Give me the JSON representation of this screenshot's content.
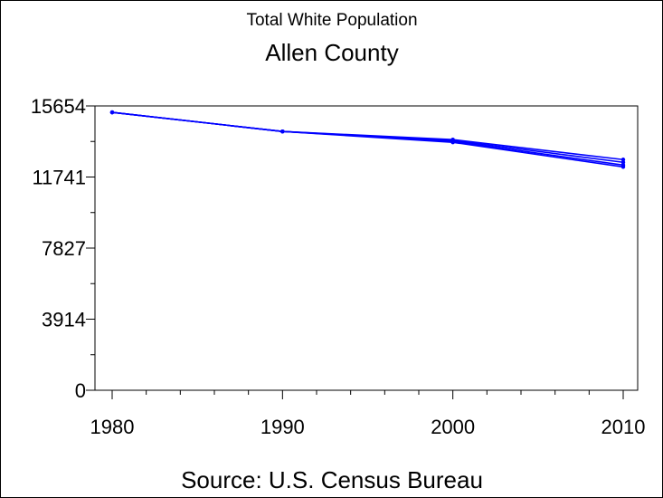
{
  "chart_data": {
    "type": "line",
    "title": "Total White Population",
    "subtitle": "Allen County",
    "xlabel": "",
    "ylabel": "",
    "footnote": "Source: U.S. Census Bureau",
    "x": [
      1980,
      1990,
      2000,
      2010
    ],
    "x_ticks": [
      "1980",
      "1990",
      "2000",
      "2010"
    ],
    "y_ticks": [
      "0",
      "3914",
      "7827",
      "11741",
      "15654"
    ],
    "xlim": [
      1980,
      2010
    ],
    "ylim": [
      0,
      15654
    ],
    "grid": false,
    "series": [
      {
        "values": [
          15300,
          14250,
          13800,
          12700
        ],
        "color": "#0000ff"
      },
      {
        "values": [
          15300,
          14250,
          13750,
          12550
        ],
        "color": "#0000ff"
      },
      {
        "values": [
          15300,
          14250,
          13700,
          12400
        ],
        "color": "#0000ff"
      },
      {
        "values": [
          15300,
          14250,
          13650,
          12300
        ],
        "color": "#0000ff"
      }
    ]
  }
}
